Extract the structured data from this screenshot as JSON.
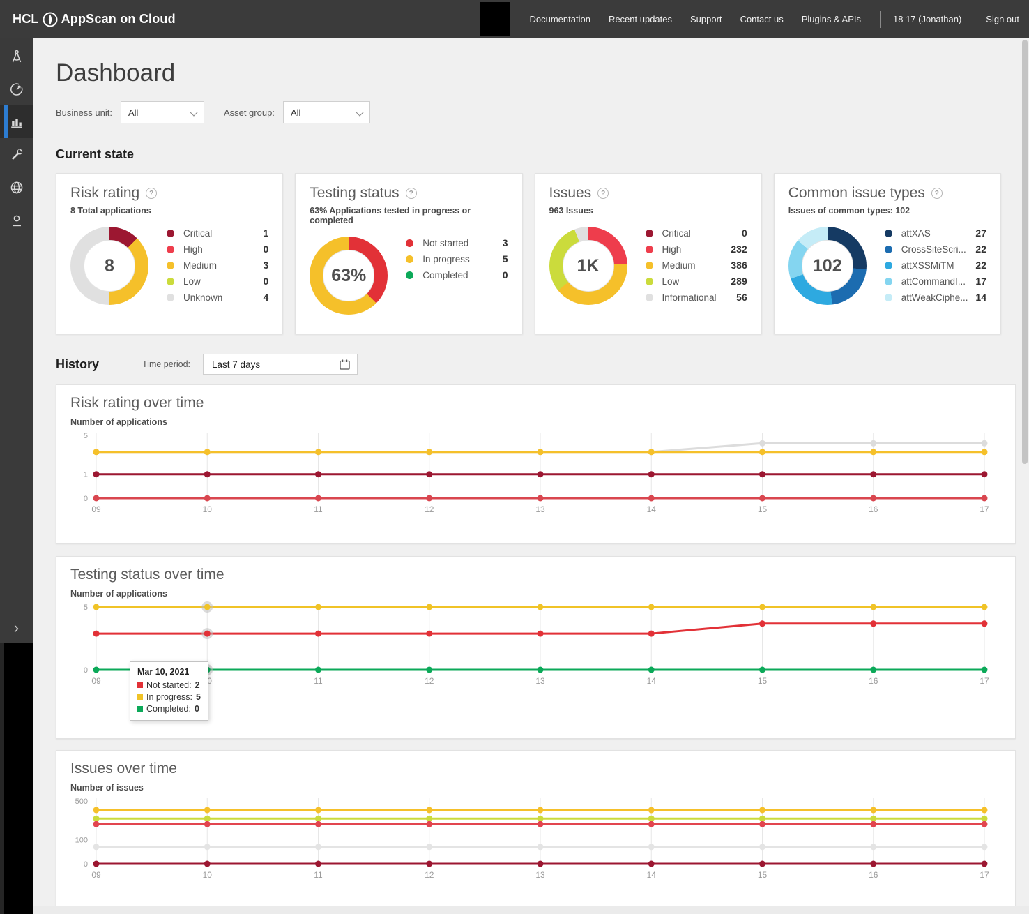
{
  "topbar": {
    "brand_hcl": "HCL",
    "brand_product": "AppScan on Cloud",
    "nav": [
      "Documentation",
      "Recent updates",
      "Support",
      "Contact us",
      "Plugins & APIs"
    ],
    "user": "18 17 (Jonathan)",
    "sign_out": "Sign out"
  },
  "page": {
    "title": "Dashboard",
    "filters": {
      "business_unit_label": "Business unit:",
      "business_unit_value": "All",
      "asset_group_label": "Asset group:",
      "asset_group_value": "All"
    },
    "current_state_heading": "Current state",
    "history_heading": "History",
    "time_period_label": "Time period:",
    "time_period_value": "Last 7 days"
  },
  "chart_data": [
    {
      "id": "risk-rating",
      "type": "pie",
      "title": "Risk rating",
      "subtitle": "8 Total applications",
      "center": "8",
      "slices": [
        {
          "label": "Critical",
          "value": 1,
          "color": "#9c1731"
        },
        {
          "label": "High",
          "value": 0,
          "color": "#ee3d4c"
        },
        {
          "label": "Medium",
          "value": 3,
          "color": "#f5c02a"
        },
        {
          "label": "Low",
          "value": 0,
          "color": "#cbdb3c"
        },
        {
          "label": "Unknown",
          "value": 4,
          "color": "#e0e0e0"
        }
      ]
    },
    {
      "id": "testing-status",
      "type": "pie",
      "title": "Testing status",
      "subtitle": "63% Applications tested in progress or completed",
      "center": "63%",
      "slices": [
        {
          "label": "Not started",
          "value": 3,
          "color": "#e23137"
        },
        {
          "label": "In progress",
          "value": 5,
          "color": "#f5c02a"
        },
        {
          "label": "Completed",
          "value": 0,
          "color": "#0ca959"
        }
      ]
    },
    {
      "id": "issues",
      "type": "pie",
      "title": "Issues",
      "subtitle": "963 Issues",
      "center": "1K",
      "slices": [
        {
          "label": "Critical",
          "value": 0,
          "color": "#9c1731"
        },
        {
          "label": "High",
          "value": 232,
          "color": "#ee3d4c"
        },
        {
          "label": "Medium",
          "value": 386,
          "color": "#f5c02a"
        },
        {
          "label": "Low",
          "value": 289,
          "color": "#cbdb3c"
        },
        {
          "label": "Informational",
          "value": 56,
          "color": "#e0e0e0"
        }
      ]
    },
    {
      "id": "common-issue-types",
      "type": "pie",
      "title": "Common issue types",
      "subtitle": "Issues of common types: 102",
      "center": "102",
      "slices": [
        {
          "label": "attXAS",
          "value": 27,
          "color": "#153a63"
        },
        {
          "label": "CrossSiteScri...",
          "value": 22,
          "color": "#1c6cb0"
        },
        {
          "label": "attXSSMiTM",
          "value": 22,
          "color": "#2ea9e0"
        },
        {
          "label": "attCommandI...",
          "value": 17,
          "color": "#84d5f0"
        },
        {
          "label": "attWeakCiphe...",
          "value": 14,
          "color": "#c5ecf7"
        }
      ]
    },
    {
      "id": "risk-rating-over-time",
      "type": "line",
      "title": "Risk rating over time",
      "ylabel": "Number of applications",
      "x": [
        "09",
        "10",
        "11",
        "12",
        "13",
        "14",
        "15",
        "16",
        "17"
      ],
      "ymax": 5,
      "yticks": [
        5,
        1,
        0
      ],
      "series": [
        {
          "name": "Unknown",
          "color": "#dcdcdc",
          "values": [
            3,
            3,
            3,
            3,
            3,
            3,
            4,
            4,
            4
          ]
        },
        {
          "name": "Medium",
          "color": "#f5c02a",
          "values": [
            3,
            3,
            3,
            3,
            3,
            3,
            3,
            3,
            3
          ]
        },
        {
          "name": "Critical",
          "color": "#9c1731",
          "values": [
            1,
            1,
            1,
            1,
            1,
            1,
            1,
            1,
            1
          ]
        },
        {
          "name": "High",
          "color": "#d9464f",
          "values": [
            0,
            0,
            0,
            0,
            0,
            0,
            0,
            0,
            0
          ]
        }
      ]
    },
    {
      "id": "testing-status-over-time",
      "type": "line",
      "title": "Testing status over time",
      "ylabel": "Number of applications",
      "x": [
        "09",
        "10",
        "11",
        "12",
        "13",
        "14",
        "15",
        "16",
        "17"
      ],
      "ymax": 5,
      "yticks": [
        5,
        0
      ],
      "highlight_x": 1,
      "series": [
        {
          "name": "In progress",
          "color": "#f0c327",
          "values": [
            5,
            5,
            5,
            5,
            5,
            5,
            5,
            5,
            5
          ]
        },
        {
          "name": "Not started",
          "color": "#e23137",
          "values": [
            2,
            2,
            2,
            2,
            2,
            2,
            3,
            3,
            3
          ]
        },
        {
          "name": "Completed",
          "color": "#0ca959",
          "values": [
            0,
            0,
            0,
            0,
            0,
            0,
            0,
            0,
            0
          ]
        }
      ],
      "tooltip": {
        "title": "Mar 10, 2021",
        "rows": [
          {
            "label": "Not started:",
            "value": "2",
            "color": "#e23137"
          },
          {
            "label": "In progress:",
            "value": "5",
            "color": "#f0c327"
          },
          {
            "label": "Completed:",
            "value": "0",
            "color": "#0ca959"
          }
        ]
      }
    },
    {
      "id": "issues-over-time",
      "type": "line",
      "title": "Issues over time",
      "ylabel": "Number of issues",
      "x": [
        "09",
        "10",
        "11",
        "12",
        "13",
        "14",
        "15",
        "16",
        "17"
      ],
      "ymax": 500,
      "yticks": [
        500,
        100,
        0
      ],
      "series": [
        {
          "name": "Medium",
          "color": "#f5c02a",
          "values": [
            386,
            386,
            386,
            386,
            386,
            386,
            386,
            386,
            386
          ]
        },
        {
          "name": "Low",
          "color": "#cbdb3c",
          "values": [
            289,
            289,
            289,
            289,
            289,
            289,
            289,
            289,
            289
          ]
        },
        {
          "name": "High",
          "color": "#e2454f",
          "values": [
            232,
            232,
            232,
            232,
            232,
            232,
            232,
            232,
            232
          ]
        },
        {
          "name": "Informational",
          "color": "#e4e4e4",
          "values": [
            56,
            56,
            56,
            56,
            56,
            56,
            56,
            56,
            56
          ]
        },
        {
          "name": "Critical",
          "color": "#9c1731",
          "values": [
            0,
            0,
            0,
            0,
            0,
            0,
            0,
            0,
            0
          ]
        }
      ]
    }
  ]
}
